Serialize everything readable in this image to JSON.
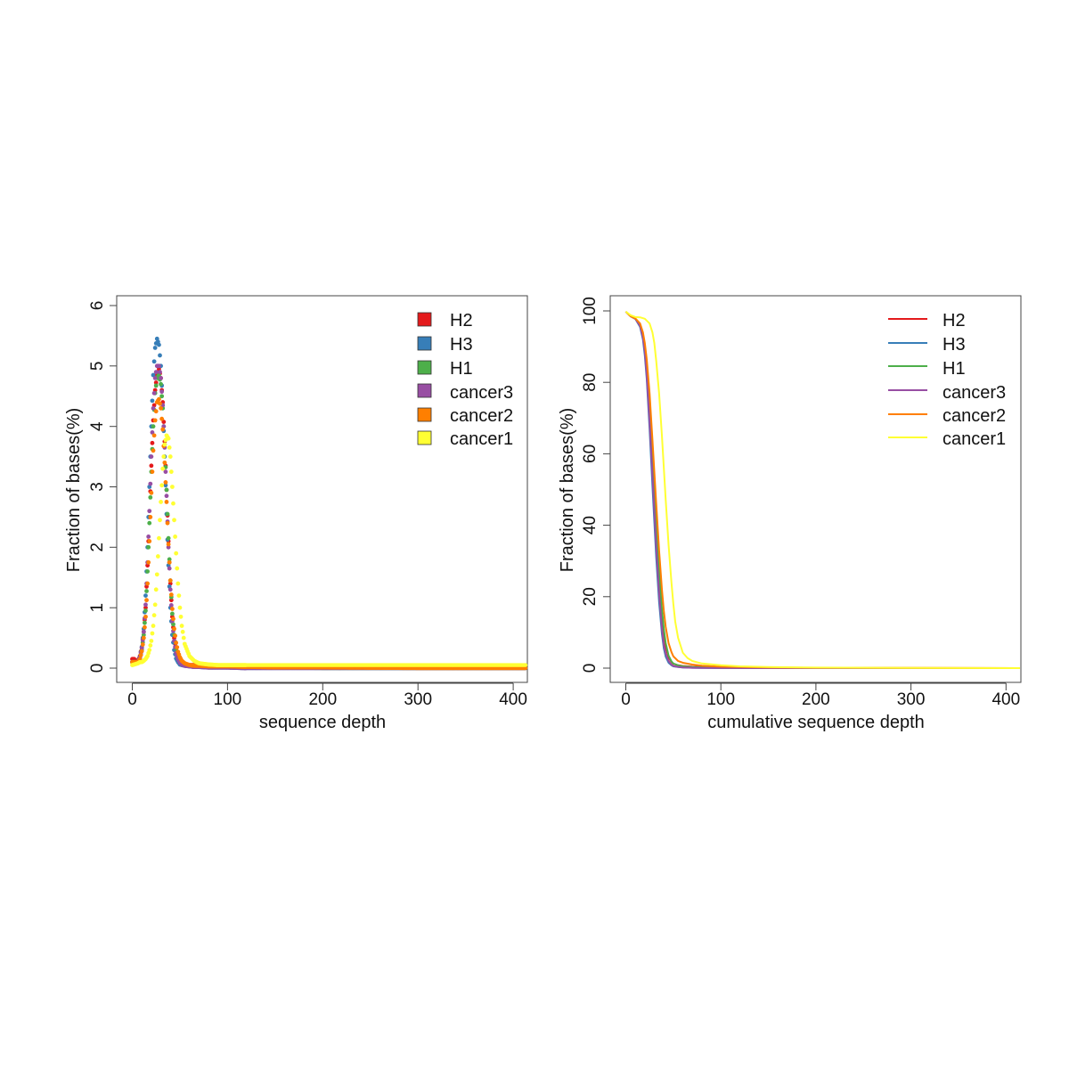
{
  "chart_data": [
    {
      "type": "scatter",
      "xlabel": "sequence depth",
      "ylabel": "Fraction of bases(%)",
      "xlim": [
        0,
        415
      ],
      "ylim": [
        0,
        6
      ],
      "xticks": [
        "0",
        "100",
        "200",
        "300",
        "400"
      ],
      "yticks": [
        "0",
        "1",
        "2",
        "3",
        "4",
        "5",
        "6"
      ],
      "grid": false,
      "legend_position": "top-right",
      "series": [
        {
          "name": "H2",
          "color": "#e41a1c",
          "x": [
            0,
            2,
            4,
            6,
            8,
            10,
            12,
            14,
            16,
            18,
            20,
            22,
            24,
            26,
            28,
            30,
            32,
            34,
            36,
            38,
            40,
            42,
            44,
            46,
            48,
            50,
            52,
            55,
            60,
            65,
            70,
            80,
            90,
            100,
            120,
            150,
            200,
            300,
            415
          ],
          "y": [
            0.15,
            0.15,
            0.12,
            0.12,
            0.2,
            0.35,
            0.6,
            1.0,
            1.7,
            2.5,
            3.35,
            4.1,
            4.6,
            4.85,
            4.95,
            4.8,
            4.4,
            3.75,
            2.95,
            2.1,
            1.4,
            0.85,
            0.5,
            0.3,
            0.2,
            0.13,
            0.09,
            0.06,
            0.05,
            0.05,
            0.05,
            0.04,
            0.04,
            0.04,
            0.03,
            0.02,
            0.01,
            0.0,
            0.0
          ]
        },
        {
          "name": "H3",
          "color": "#377eb8",
          "x": [
            0,
            2,
            4,
            6,
            8,
            10,
            12,
            14,
            16,
            18,
            20,
            22,
            24,
            26,
            28,
            30,
            32,
            34,
            36,
            38,
            40,
            42,
            44,
            46,
            48,
            50,
            52,
            55,
            60,
            65,
            70,
            80,
            90,
            100,
            120,
            150,
            200,
            300,
            415
          ],
          "y": [
            0.1,
            0.1,
            0.1,
            0.1,
            0.18,
            0.35,
            0.65,
            1.2,
            2.0,
            3.0,
            4.0,
            4.85,
            5.3,
            5.45,
            5.35,
            5.0,
            4.35,
            3.5,
            2.55,
            1.7,
            1.0,
            0.55,
            0.3,
            0.16,
            0.1,
            0.06,
            0.05,
            0.04,
            0.03,
            0.02,
            0.02,
            0.01,
            0.01,
            0.01,
            0.0,
            0.0,
            0.0,
            0.0,
            0.0
          ]
        },
        {
          "name": "H1",
          "color": "#4daf4a",
          "x": [
            0,
            2,
            4,
            6,
            8,
            10,
            12,
            14,
            16,
            18,
            20,
            22,
            24,
            26,
            28,
            30,
            32,
            34,
            36,
            38,
            40,
            42,
            44,
            46,
            48,
            50,
            52,
            55,
            60,
            65,
            70,
            80,
            90,
            100,
            120,
            150,
            200,
            300,
            415
          ],
          "y": [
            0.1,
            0.1,
            0.1,
            0.1,
            0.15,
            0.3,
            0.55,
            0.95,
            1.6,
            2.4,
            3.25,
            4.0,
            4.55,
            4.8,
            4.85,
            4.7,
            4.3,
            3.7,
            2.95,
            2.15,
            1.45,
            0.9,
            0.55,
            0.32,
            0.2,
            0.12,
            0.08,
            0.05,
            0.04,
            0.03,
            0.03,
            0.02,
            0.02,
            0.02,
            0.01,
            0.01,
            0.0,
            0.0,
            0.0
          ]
        },
        {
          "name": "cancer3",
          "color": "#984ea3",
          "x": [
            0,
            2,
            4,
            6,
            8,
            10,
            12,
            14,
            16,
            18,
            20,
            22,
            24,
            26,
            28,
            30,
            32,
            34,
            36,
            38,
            40,
            42,
            44,
            46,
            48,
            50,
            52,
            55,
            60,
            65,
            70,
            80,
            90,
            100,
            120,
            150,
            200,
            300,
            415
          ],
          "y": [
            0.1,
            0.1,
            0.1,
            0.1,
            0.17,
            0.33,
            0.6,
            1.05,
            1.75,
            2.6,
            3.5,
            4.3,
            4.8,
            5.0,
            5.0,
            4.8,
            4.35,
            3.65,
            2.85,
            2.0,
            1.3,
            0.78,
            0.45,
            0.25,
            0.15,
            0.09,
            0.06,
            0.04,
            0.03,
            0.02,
            0.02,
            0.01,
            0.01,
            0.01,
            0.0,
            0.0,
            0.0,
            0.0,
            0.0
          ]
        },
        {
          "name": "cancer2",
          "color": "#ff7f00",
          "x": [
            0,
            2,
            4,
            6,
            8,
            10,
            12,
            14,
            16,
            18,
            20,
            22,
            24,
            26,
            28,
            30,
            32,
            34,
            36,
            38,
            40,
            42,
            44,
            46,
            48,
            50,
            52,
            55,
            60,
            65,
            70,
            80,
            90,
            100,
            120,
            150,
            200,
            300,
            415
          ],
          "y": [
            0.1,
            0.1,
            0.1,
            0.1,
            0.15,
            0.28,
            0.5,
            0.85,
            1.4,
            2.1,
            2.9,
            3.6,
            4.1,
            4.4,
            4.45,
            4.3,
            3.95,
            3.4,
            2.75,
            2.05,
            1.45,
            0.98,
            0.65,
            0.42,
            0.27,
            0.18,
            0.12,
            0.08,
            0.05,
            0.04,
            0.04,
            0.03,
            0.03,
            0.03,
            0.02,
            0.01,
            0.01,
            0.0,
            0.0
          ]
        },
        {
          "name": "cancer1",
          "color": "#ffff33",
          "x": [
            0,
            2,
            4,
            6,
            8,
            10,
            12,
            14,
            16,
            18,
            20,
            22,
            24,
            26,
            28,
            30,
            32,
            34,
            36,
            38,
            40,
            42,
            44,
            46,
            48,
            50,
            52,
            55,
            60,
            65,
            70,
            80,
            90,
            100,
            120,
            150,
            200,
            300,
            415
          ],
          "y": [
            0.05,
            0.06,
            0.07,
            0.08,
            0.1,
            0.1,
            0.12,
            0.15,
            0.2,
            0.3,
            0.45,
            0.7,
            1.05,
            1.55,
            2.15,
            2.75,
            3.3,
            3.7,
            3.85,
            3.8,
            3.5,
            3.0,
            2.45,
            1.9,
            1.4,
            1.0,
            0.7,
            0.4,
            0.2,
            0.12,
            0.08,
            0.06,
            0.05,
            0.05,
            0.05,
            0.05,
            0.05,
            0.05,
            0.05
          ]
        }
      ]
    },
    {
      "type": "line",
      "xlabel": "cumulative sequence depth",
      "ylabel": "Fraction of bases(%)",
      "xlim": [
        0,
        415
      ],
      "ylim": [
        0,
        100
      ],
      "xticks": [
        "0",
        "100",
        "200",
        "300",
        "400"
      ],
      "yticks": [
        "0",
        "20",
        "40",
        "60",
        "80",
        "100"
      ],
      "grid": false,
      "legend_position": "top-right",
      "series": [
        {
          "name": "H2",
          "color": "#e41a1c",
          "x": [
            0,
            5,
            10,
            15,
            18,
            20,
            22,
            25,
            28,
            30,
            32,
            35,
            38,
            40,
            42,
            45,
            48,
            50,
            55,
            60,
            70,
            80,
            100,
            150,
            200,
            300,
            415
          ],
          "y": [
            99.8,
            98.5,
            97.8,
            96.0,
            93.0,
            89.0,
            83.0,
            71.0,
            57.0,
            47.5,
            38.0,
            25.0,
            14.5,
            9.5,
            6.0,
            3.0,
            1.8,
            1.2,
            0.8,
            0.6,
            0.4,
            0.3,
            0.2,
            0.1,
            0.05,
            0.02,
            0.0
          ]
        },
        {
          "name": "H3",
          "color": "#377eb8",
          "x": [
            0,
            5,
            10,
            15,
            18,
            20,
            22,
            25,
            28,
            30,
            32,
            35,
            38,
            40,
            42,
            45,
            48,
            50,
            55,
            60,
            70,
            80,
            100,
            150,
            200,
            300,
            415
          ],
          "y": [
            99.8,
            98.5,
            97.8,
            95.5,
            92.0,
            87.5,
            81.0,
            67.0,
            51.0,
            41.0,
            31.0,
            18.5,
            9.5,
            5.5,
            3.2,
            1.5,
            0.8,
            0.5,
            0.3,
            0.2,
            0.1,
            0.05,
            0.02,
            0.0,
            0.0,
            0.0,
            0.0
          ]
        },
        {
          "name": "H1",
          "color": "#4daf4a",
          "x": [
            0,
            5,
            10,
            15,
            18,
            20,
            22,
            25,
            28,
            30,
            32,
            35,
            38,
            40,
            42,
            45,
            48,
            50,
            55,
            60,
            70,
            80,
            100,
            150,
            200,
            300,
            415
          ],
          "y": [
            99.8,
            98.5,
            97.8,
            96.0,
            93.0,
            89.5,
            84.0,
            73.0,
            59.0,
            50.0,
            40.5,
            27.5,
            16.5,
            11.0,
            7.0,
            3.5,
            1.9,
            1.3,
            0.8,
            0.5,
            0.3,
            0.2,
            0.1,
            0.05,
            0.02,
            0.0,
            0.0
          ]
        },
        {
          "name": "cancer3",
          "color": "#984ea3",
          "x": [
            0,
            5,
            10,
            15,
            18,
            20,
            22,
            25,
            28,
            30,
            32,
            35,
            38,
            40,
            42,
            45,
            48,
            50,
            55,
            60,
            70,
            80,
            100,
            150,
            200,
            300,
            415
          ],
          "y": [
            99.8,
            98.5,
            97.8,
            95.8,
            92.5,
            88.5,
            82.0,
            69.0,
            54.0,
            44.0,
            34.0,
            21.0,
            11.0,
            6.5,
            4.0,
            2.0,
            1.0,
            0.6,
            0.35,
            0.2,
            0.1,
            0.05,
            0.02,
            0.0,
            0.0,
            0.0,
            0.0
          ]
        },
        {
          "name": "cancer2",
          "color": "#ff7f00",
          "x": [
            0,
            5,
            10,
            15,
            18,
            20,
            22,
            25,
            28,
            30,
            32,
            35,
            38,
            40,
            42,
            45,
            48,
            50,
            55,
            60,
            70,
            80,
            100,
            150,
            200,
            300,
            415
          ],
          "y": [
            99.8,
            98.5,
            97.9,
            96.5,
            94.0,
            91.0,
            86.5,
            77.0,
            64.0,
            55.0,
            46.0,
            33.0,
            22.0,
            16.0,
            11.5,
            7.0,
            4.5,
            3.3,
            2.0,
            1.5,
            1.0,
            0.7,
            0.4,
            0.2,
            0.1,
            0.05,
            0.0
          ]
        },
        {
          "name": "cancer1",
          "color": "#ffff33",
          "x": [
            0,
            5,
            10,
            15,
            20,
            25,
            28,
            30,
            32,
            35,
            38,
            40,
            42,
            45,
            48,
            50,
            52,
            55,
            60,
            65,
            70,
            80,
            100,
            120,
            150,
            200,
            300,
            415
          ],
          "y": [
            99.8,
            98.8,
            98.3,
            98.2,
            97.8,
            96.5,
            94.0,
            91.0,
            86.0,
            77.0,
            65.0,
            56.0,
            47.0,
            34.5,
            24.0,
            18.0,
            13.0,
            8.5,
            4.3,
            2.8,
            2.0,
            1.3,
            0.8,
            0.5,
            0.3,
            0.15,
            0.05,
            0.0
          ]
        }
      ]
    }
  ]
}
